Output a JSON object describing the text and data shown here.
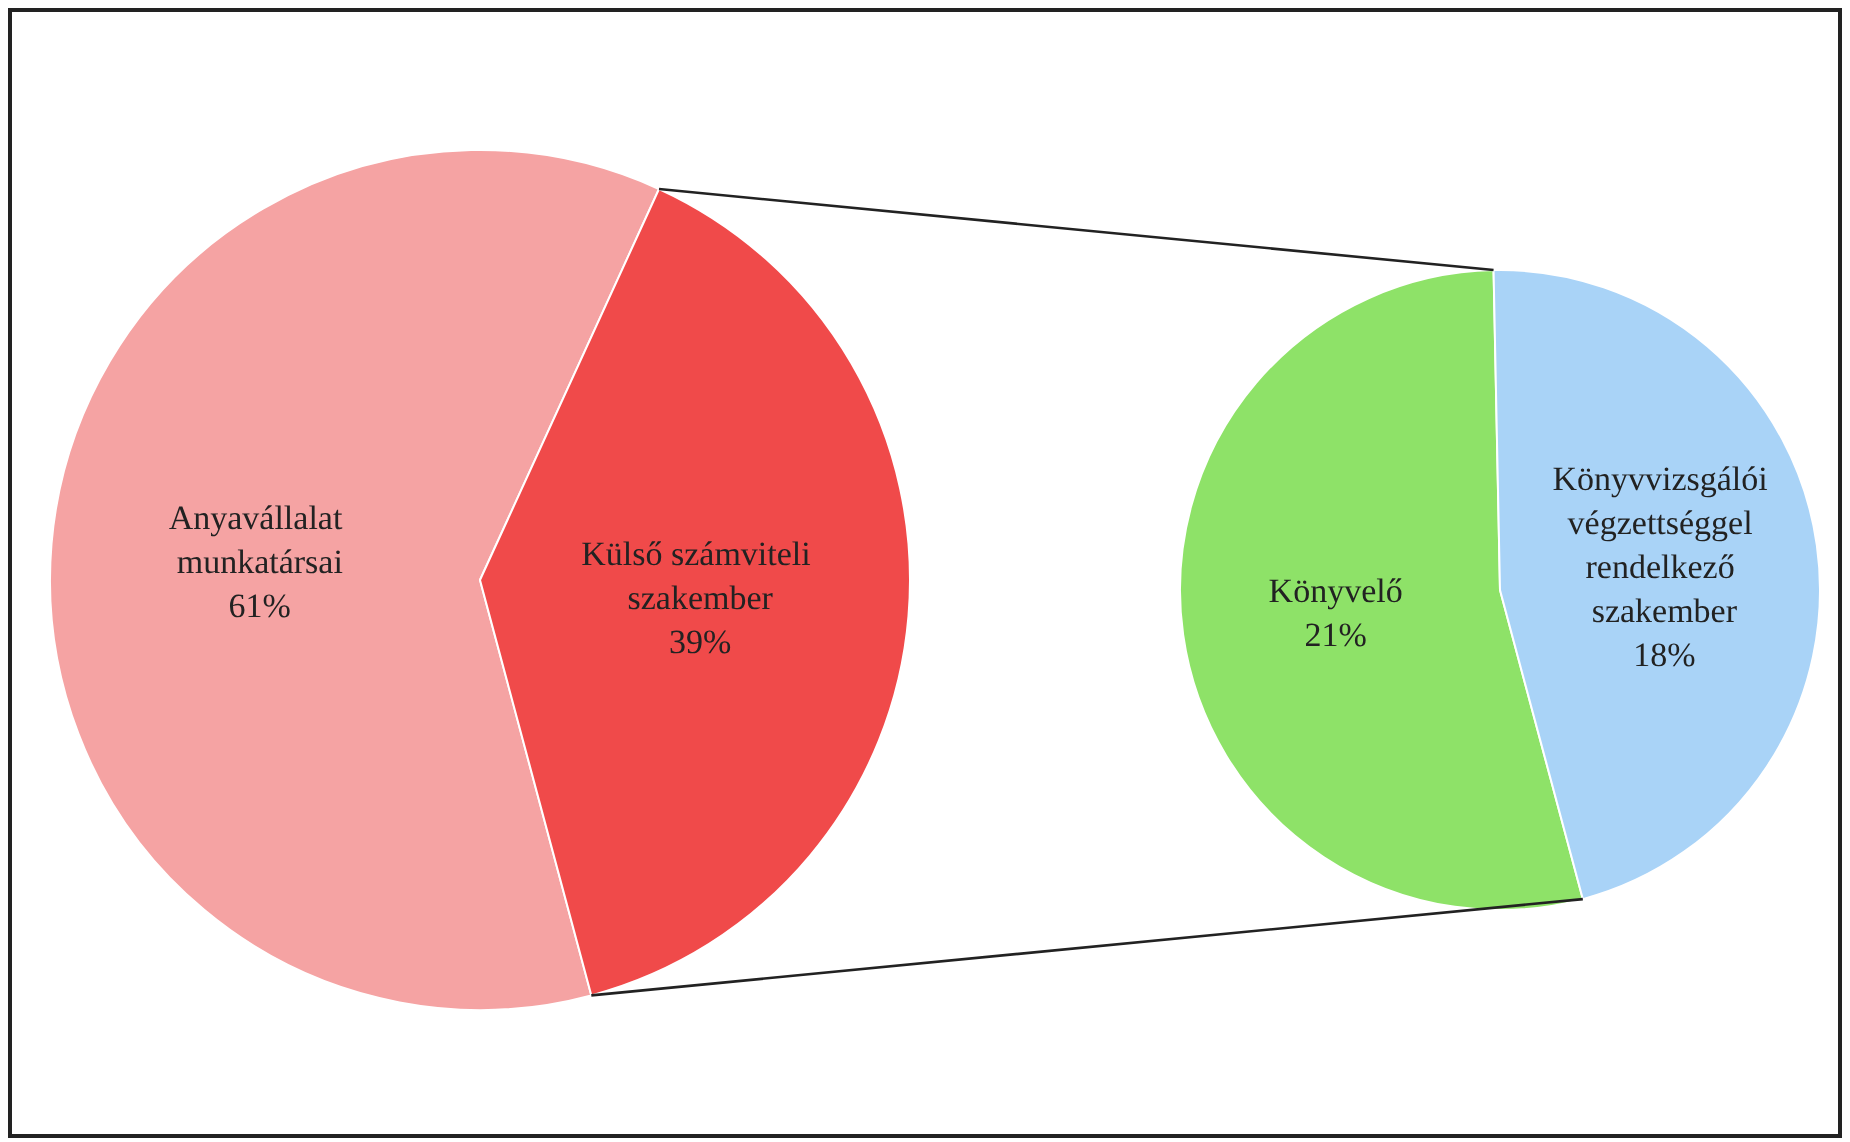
{
  "chart_data": [
    {
      "type": "pie",
      "categories": [
        "Anyavállalat munkatársai",
        "Külső számviteli szakember"
      ],
      "values": [
        61,
        39
      ],
      "colors": [
        "#f5a3a3",
        "#f04a4a"
      ],
      "value_labels": [
        "61%",
        "39%"
      ]
    },
    {
      "type": "pie",
      "categories": [
        "Könyvelő",
        "Könyvvizsgálói végzettséggel rendelkező szakember"
      ],
      "values": [
        21,
        18
      ],
      "colors": [
        "#8ee268",
        "#a9d3f7"
      ],
      "value_labels": [
        "21%",
        "18%"
      ]
    }
  ]
}
